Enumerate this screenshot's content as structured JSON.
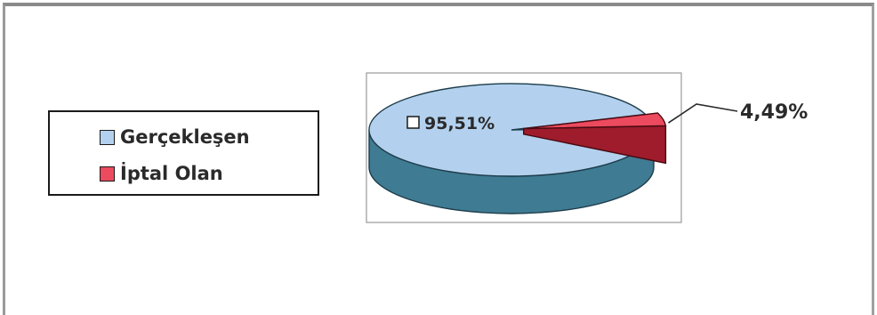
{
  "chart_data": {
    "type": "pie",
    "style": "3d-exploded",
    "title": "",
    "legend_position": "left",
    "series": [
      {
        "categories": [
          "Gerçekleşen",
          "İptal Olan"
        ],
        "values": [
          95.51,
          4.49
        ],
        "labels": [
          "95,51%",
          "4,49%"
        ],
        "colors": [
          "#b3d1ee",
          "#ec4a5e"
        ],
        "side_colors": [
          "#3f7b93",
          "#9e1c2c"
        ]
      }
    ]
  }
}
